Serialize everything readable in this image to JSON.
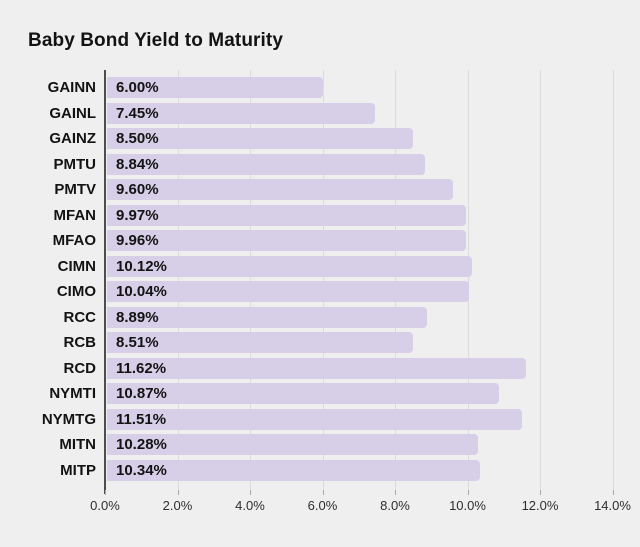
{
  "title": "Baby Bond Yield to Maturity",
  "colors": {
    "background": "#efefef",
    "bar": "#d6cfe7",
    "gridline": "#dbdbdb",
    "axis_line": "#4d4d4d",
    "label_text": "#131313",
    "tick_text": "#2e2e2e"
  },
  "chart_data": {
    "type": "bar",
    "orientation": "horizontal",
    "title": "Baby Bond Yield to Maturity",
    "xlabel": "",
    "ylabel": "",
    "categories": [
      "GAINN",
      "GAINL",
      "GAINZ",
      "PMTU",
      "PMTV",
      "MFAN",
      "MFAO",
      "CIMN",
      "CIMO",
      "RCC",
      "RCB",
      "RCD",
      "NYMTI",
      "NYMTG",
      "MITN",
      "MITP"
    ],
    "values": [
      6.0,
      7.45,
      8.5,
      8.84,
      9.6,
      9.97,
      9.96,
      10.12,
      10.04,
      8.89,
      8.51,
      11.62,
      10.87,
      11.51,
      10.28,
      10.34
    ],
    "value_labels": [
      "6.00%",
      "7.45%",
      "8.50%",
      "8.84%",
      "9.60%",
      "9.97%",
      "9.96%",
      "10.12%",
      "10.04%",
      "8.89%",
      "8.51%",
      "11.62%",
      "10.87%",
      "11.51%",
      "10.28%",
      "10.34%"
    ],
    "xlim": [
      0,
      14
    ],
    "x_tick_values": [
      0,
      2,
      4,
      6,
      8,
      10,
      12,
      14
    ],
    "x_ticks": [
      "0.0%",
      "2.0%",
      "4.0%",
      "6.0%",
      "8.0%",
      "10.0%",
      "12.0%",
      "14.0%"
    ],
    "grid": "vertical",
    "legend": "none"
  }
}
